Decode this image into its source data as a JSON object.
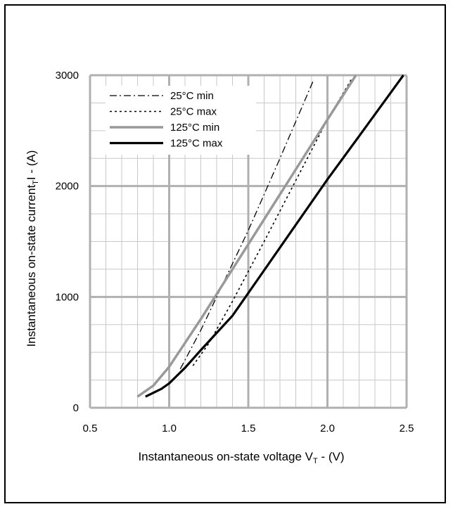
{
  "chart_data": {
    "type": "line",
    "xlabel": "Instantaneous on-state voltage V",
    "xlabel_sub": "T",
    "xlabel_unit": " -  (V)",
    "ylabel": "Instantaneous on-state current",
    "ylabel_sub": "T",
    "ylabel_mid": "I",
    "ylabel_unit": " - (A)",
    "xlim": [
      0.5,
      2.5
    ],
    "ylim": [
      0,
      3000
    ],
    "x_major_ticks": [
      0.5,
      1.0,
      1.5,
      2.0,
      2.5
    ],
    "x_tick_labels": [
      "0.5",
      "1.0",
      "1.5",
      "2.0",
      "2.5"
    ],
    "y_major_ticks": [
      0,
      1000,
      2000,
      3000
    ],
    "y_tick_labels": [
      "0",
      "1000",
      "2000",
      "3000"
    ],
    "x_minor_step": 0.1,
    "y_minor_step": 250,
    "grid": true,
    "legend_position": "top-left",
    "series": [
      {
        "name": "25°C min",
        "style": "dashdot",
        "color": "#000000",
        "width": 1.3,
        "x": [
          1.07,
          1.2,
          1.35,
          1.5,
          1.7,
          1.91
        ],
        "y": [
          350,
          700,
          1150,
          1600,
          2250,
          2950
        ]
      },
      {
        "name": "25°C max",
        "style": "dotted",
        "color": "#000000",
        "width": 1.6,
        "x": [
          1.15,
          1.25,
          1.4,
          1.6,
          1.8,
          2.0,
          2.15
        ],
        "y": [
          380,
          580,
          960,
          1500,
          2050,
          2600,
          2960
        ]
      },
      {
        "name": "125°C min",
        "style": "solid",
        "color": "#999999",
        "width": 3.5,
        "x": [
          0.8,
          0.9,
          1.0,
          1.2,
          1.4,
          1.6,
          1.8,
          2.0,
          2.18
        ],
        "y": [
          100,
          200,
          370,
          800,
          1250,
          1700,
          2150,
          2600,
          3000
        ]
      },
      {
        "name": "125°C max",
        "style": "solid",
        "color": "#000000",
        "width": 3.2,
        "x": [
          0.85,
          0.95,
          1.0,
          1.1,
          1.2,
          1.4,
          1.6,
          1.8,
          2.0,
          2.2,
          2.48
        ],
        "y": [
          100,
          170,
          220,
          360,
          520,
          830,
          1240,
          1650,
          2060,
          2450,
          3000
        ]
      }
    ]
  }
}
